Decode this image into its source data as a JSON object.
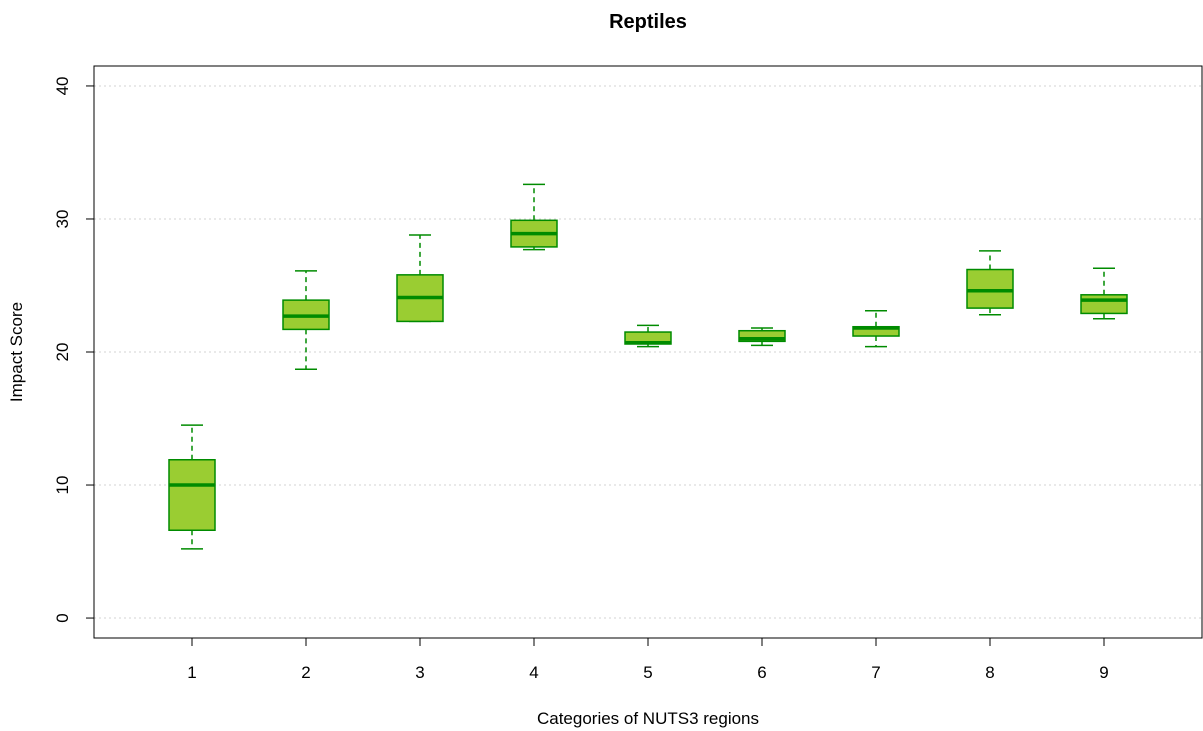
{
  "chart_data": {
    "type": "boxplot",
    "title": "Reptiles",
    "xlabel": "Categories of NUTS3 regions",
    "ylabel": "Impact Score",
    "ylim": [
      -1.5,
      41.5
    ],
    "y_ticks": [
      0,
      10,
      20,
      30,
      40
    ],
    "grid": "horizontal dotted",
    "colors": {
      "fill": "#9acd32",
      "stroke": "#008b00",
      "grid": "#d3d3d3"
    },
    "categories": [
      "1",
      "2",
      "3",
      "4",
      "5",
      "6",
      "7",
      "8",
      "9"
    ],
    "boxes": [
      {
        "category": "1",
        "min": 5.2,
        "q1": 6.6,
        "median": 10.0,
        "q3": 11.9,
        "max": 14.5
      },
      {
        "category": "2",
        "min": 18.7,
        "q1": 21.7,
        "median": 22.7,
        "q3": 23.9,
        "max": 26.1
      },
      {
        "category": "3",
        "min": 22.3,
        "q1": 22.3,
        "median": 24.1,
        "q3": 25.8,
        "max": 28.8
      },
      {
        "category": "4",
        "min": 27.7,
        "q1": 27.9,
        "median": 28.9,
        "q3": 29.9,
        "max": 32.6
      },
      {
        "category": "5",
        "min": 20.4,
        "q1": 20.6,
        "median": 20.7,
        "q3": 21.5,
        "max": 22.0
      },
      {
        "category": "6",
        "min": 20.5,
        "q1": 20.8,
        "median": 21.0,
        "q3": 21.6,
        "max": 21.8
      },
      {
        "category": "7",
        "min": 20.4,
        "q1": 21.2,
        "median": 21.8,
        "q3": 21.9,
        "max": 23.1
      },
      {
        "category": "8",
        "min": 22.8,
        "q1": 23.3,
        "median": 24.6,
        "q3": 26.2,
        "max": 27.6
      },
      {
        "category": "9",
        "min": 22.5,
        "q1": 22.9,
        "median": 23.9,
        "q3": 24.3,
        "max": 26.3
      }
    ]
  }
}
